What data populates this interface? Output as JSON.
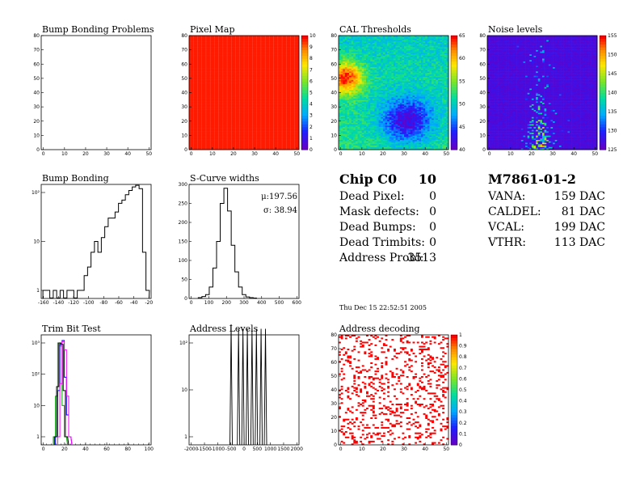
{
  "panels": [
    {
      "id": "p1",
      "type": "heatmap",
      "title": "Bump Bonding Problems",
      "x_ticks": [
        "0",
        "10",
        "20",
        "30",
        "40",
        "50"
      ],
      "y_ticks": [
        "0",
        "10",
        "20",
        "30",
        "40",
        "50",
        "60",
        "70",
        "80"
      ],
      "fill": "empty"
    },
    {
      "id": "p2",
      "type": "heatmap",
      "title": "Pixel Map",
      "x_ticks": [
        "0",
        "10",
        "20",
        "30",
        "40",
        "50"
      ],
      "y_ticks": [
        "0",
        "10",
        "20",
        "30",
        "40",
        "50",
        "60",
        "70",
        "80"
      ],
      "fill": "uniform",
      "value": 10,
      "palette_ticks": [
        "0",
        "1",
        "2",
        "3",
        "4",
        "5",
        "6",
        "7",
        "8",
        "9",
        "10"
      ]
    },
    {
      "id": "p3",
      "type": "heatmap",
      "title": "CAL Thresholds",
      "x_ticks": [
        "0",
        "10",
        "20",
        "30",
        "40",
        "50"
      ],
      "y_ticks": [
        "0",
        "10",
        "20",
        "30",
        "40",
        "50",
        "60",
        "70",
        "80"
      ],
      "fill": "thresholds",
      "palette_ticks": [
        "40",
        "45",
        "50",
        "55",
        "60",
        "65"
      ]
    },
    {
      "id": "p4",
      "type": "heatmap",
      "title": "Noise levels",
      "x_ticks": [
        "0",
        "10",
        "20",
        "30",
        "40",
        "50"
      ],
      "y_ticks": [
        "0",
        "10",
        "20",
        "30",
        "40",
        "50",
        "60",
        "70",
        "80"
      ],
      "fill": "noise",
      "palette_ticks": [
        "125",
        "130",
        "135",
        "140",
        "145",
        "150",
        "155"
      ]
    },
    {
      "id": "p5",
      "type": "line",
      "title": "Bump Bonding",
      "x_ticks": [
        "-160",
        "-140",
        "-120",
        "-100",
        "-80",
        "-60",
        "-40",
        "-20"
      ],
      "y_ticks": [
        "1",
        "10",
        "10²"
      ],
      "log_y": true
    },
    {
      "id": "p6",
      "type": "line",
      "title": "S-Curve widths",
      "x_ticks": [
        "0",
        "100",
        "200",
        "300",
        "400",
        "500",
        "600"
      ],
      "y_ticks": [
        "0",
        "50",
        "100",
        "150",
        "200",
        "250",
        "300"
      ],
      "stats": [
        "μ:197.56",
        "σ: 38.94"
      ]
    },
    {
      "id": "p7",
      "type": "line",
      "title": "Trim Bit Test",
      "x_ticks": [
        "0",
        "20",
        "40",
        "60",
        "80",
        "100"
      ],
      "y_ticks": [
        "1",
        "10",
        "10²",
        "10³"
      ],
      "log_y": true
    },
    {
      "id": "p8",
      "type": "line",
      "title": "Address Levels",
      "x_ticks": [
        "-2000",
        "-1500",
        "-1000",
        "-500",
        "0",
        "500",
        "1000",
        "1500",
        "2000"
      ],
      "y_ticks": [
        "1",
        "10",
        "10²"
      ],
      "log_y": true
    },
    {
      "id": "p9",
      "type": "heatmap",
      "title": "Address decoding",
      "x_ticks": [
        "0",
        "10",
        "20",
        "30",
        "40",
        "50"
      ],
      "y_ticks": [
        "0",
        "10",
        "20",
        "30",
        "40",
        "50",
        "60",
        "70",
        "80"
      ],
      "fill": "sparse",
      "palette_ticks": [
        "0",
        "0.1",
        "0.2",
        "0.3",
        "0.4",
        "0.5",
        "0.6",
        "0.7",
        "0.8",
        "0.9",
        "1"
      ]
    }
  ],
  "chip": {
    "title": "Chip C0",
    "number": "10",
    "rows": [
      {
        "label": "Dead Pixel:",
        "value": "0"
      },
      {
        "label": "Mask defects:",
        "value": "0"
      },
      {
        "label": "Dead Bumps:",
        "value": "0"
      },
      {
        "label": "Dead Trimbits:",
        "value": "0"
      },
      {
        "label": "Address Probl:",
        "value": "3513"
      }
    ]
  },
  "module": {
    "title": "M7861-01-2",
    "rows": [
      {
        "label": "VANA:",
        "value": "159 DAC"
      },
      {
        "label": "CALDEL:",
        "value": "81 DAC"
      },
      {
        "label": "VCAL:",
        "value": "199 DAC"
      },
      {
        "label": "VTHR:",
        "value": "113 DAC"
      }
    ]
  },
  "timestamp": "Thu Dec 15 22:52:51 2005",
  "chart_data": [
    {
      "type": "heatmap",
      "title": "Bump Bonding Problems",
      "xlim": [
        0,
        52
      ],
      "ylim": [
        0,
        80
      ],
      "values": "empty"
    },
    {
      "type": "heatmap",
      "title": "Pixel Map",
      "xlim": [
        0,
        52
      ],
      "ylim": [
        0,
        80
      ],
      "zlim": [
        0,
        10
      ],
      "values": "all 10"
    },
    {
      "type": "heatmap",
      "title": "CAL Thresholds",
      "xlim": [
        0,
        52
      ],
      "ylim": [
        0,
        80
      ],
      "zlim": [
        38,
        67
      ],
      "description_values": "high (~65) near x 0-8,y 45-55; low (~45) near x 25-40,y 10-30"
    },
    {
      "type": "heatmap",
      "title": "Noise levels",
      "xlim": [
        0,
        52
      ],
      "ylim": [
        0,
        80
      ],
      "zlim": [
        122,
        157
      ],
      "description_values": "baseline ~123; higher in band x 20-30 at low y"
    },
    {
      "type": "line",
      "title": "Bump Bonding",
      "xlim": [
        -170,
        -10
      ],
      "log_y": true,
      "series": [
        {
          "x": [
            -165,
            -160,
            -155,
            -150,
            -145,
            -140,
            -135,
            -130,
            -125,
            -120,
            -115,
            -110,
            -105,
            -100,
            -95,
            -90,
            -85,
            -80,
            -75,
            -70,
            -65,
            -60,
            -55,
            -50,
            -45,
            -40,
            -35,
            -30,
            -25,
            -20,
            -15
          ],
          "y": [
            1,
            1,
            0,
            1,
            0,
            1,
            0,
            1,
            1,
            0,
            1,
            1,
            2,
            3,
            6,
            10,
            6,
            12,
            20,
            30,
            30,
            40,
            60,
            70,
            90,
            110,
            130,
            140,
            120,
            6,
            1
          ]
        }
      ]
    },
    {
      "type": "line",
      "title": "S-Curve widths",
      "xlim": [
        0,
        600
      ],
      "ylim": [
        0,
        300
      ],
      "series": [
        {
          "x": [
            60,
            80,
            100,
            120,
            140,
            160,
            180,
            200,
            220,
            240,
            260,
            280,
            300,
            320,
            340,
            360
          ],
          "y": [
            2,
            5,
            10,
            30,
            80,
            150,
            250,
            290,
            230,
            140,
            70,
            30,
            10,
            4,
            2,
            1
          ]
        }
      ],
      "stats": {
        "mean": 197.56,
        "sigma": 38.94
      }
    },
    {
      "type": "line",
      "title": "Trim Bit Test",
      "xlim": [
        0,
        100
      ],
      "log_y": true,
      "series": [
        {
          "color": "#00aa00",
          "x": [
            12,
            14,
            16,
            18,
            20,
            22
          ],
          "y": [
            1,
            20,
            1000,
            800,
            10,
            1
          ]
        },
        {
          "color": "#0000ff",
          "x": [
            14,
            16,
            18,
            20,
            22,
            24,
            26
          ],
          "y": [
            1,
            30,
            900,
            1200,
            80,
            5,
            1
          ]
        },
        {
          "color": "#ff00ff",
          "x": [
            16,
            18,
            20,
            22,
            24,
            26
          ],
          "y": [
            1,
            50,
            1100,
            600,
            20,
            1
          ]
        },
        {
          "color": "#000000",
          "x": [
            13,
            15,
            17,
            19,
            21,
            23
          ],
          "y": [
            1,
            40,
            1000,
            900,
            30,
            1
          ]
        }
      ]
    },
    {
      "type": "line",
      "title": "Address Levels",
      "xlim": [
        -2000,
        2000
      ],
      "log_y": true,
      "series": [
        {
          "x": [
            -470,
            -200,
            -40,
            120,
            290,
            450,
            620,
            780
          ],
          "y": [
            250,
            200,
            200,
            200,
            200,
            200,
            200,
            200
          ]
        }
      ]
    },
    {
      "type": "heatmap",
      "title": "Address decoding",
      "xlim": [
        0,
        52
      ],
      "ylim": [
        0,
        80
      ],
      "zlim": [
        0,
        1
      ],
      "values": "scattered cells equal to 1"
    }
  ],
  "colors": {
    "frame": "#000000",
    "red": "#ff0000",
    "blue": "#0000ff",
    "green": "#00aa00",
    "magenta": "#ff00ff"
  }
}
